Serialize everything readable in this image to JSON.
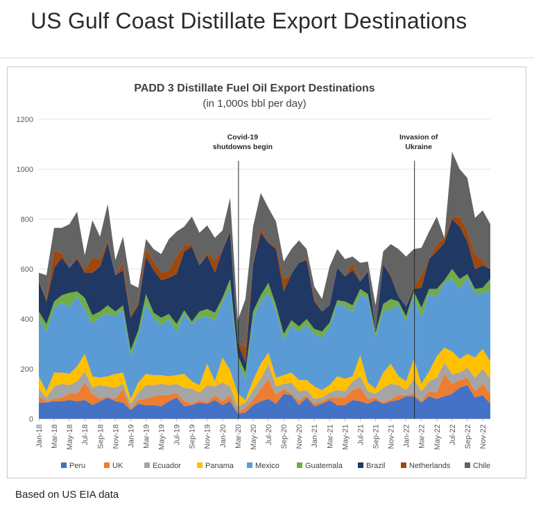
{
  "page": {
    "title": "US Gulf Coast Distillate Export Destinations",
    "footnote": "Based on US EIA data"
  },
  "chart_data": {
    "type": "area",
    "stacked": true,
    "title": "PADD 3 Distillate Fuel Oil Export Destinations",
    "subtitle": "(in 1,000s bbl per day)",
    "xlabel": "",
    "ylabel": "",
    "ylim": [
      0,
      1200
    ],
    "yticks": [
      "0",
      "200",
      "400",
      "600",
      "800",
      "1000",
      "1200"
    ],
    "x": [
      "Jan-18",
      "Feb-18",
      "Mar-18",
      "Apr-18",
      "May-18",
      "Jun-18",
      "Jul-18",
      "Aug-18",
      "Sep-18",
      "Oct-18",
      "Nov-18",
      "Dec-18",
      "Jan-19",
      "Feb-19",
      "Mar-19",
      "Apr-19",
      "May-19",
      "Jun-19",
      "Jul-19",
      "Aug-19",
      "Sep-19",
      "Oct-19",
      "Nov-19",
      "Dec-19",
      "Jan-20",
      "Feb-20",
      "Mar-20",
      "Apr-20",
      "May-20",
      "Jun-20",
      "Jul-20",
      "Aug-20",
      "Sep-20",
      "Oct-20",
      "Nov-20",
      "Dec-20",
      "Jan-21",
      "Feb-21",
      "Mar-21",
      "Apr-21",
      "May-21",
      "Jun-21",
      "Jul-21",
      "Aug-21",
      "Sep-21",
      "Oct-21",
      "Nov-21",
      "Dec-21",
      "Jan-22",
      "Feb-22",
      "Mar-22",
      "Apr-22",
      "May-22",
      "Jun-22",
      "Jul-22",
      "Aug-22",
      "Sep-22",
      "Oct-22",
      "Nov-22",
      "Dec-22"
    ],
    "xtick_labels": [
      "Jan-18",
      "Mar-18",
      "May-18",
      "Jul-18",
      "Sep-18",
      "Nov-18",
      "Jan-19",
      "Mar-19",
      "May-19",
      "Jul-19",
      "Sep-19",
      "Nov-19",
      "Jan-20",
      "Mar-20",
      "May-20",
      "Jul-20",
      "Sep-20",
      "Nov-20",
      "Jan-21",
      "Mar-21",
      "May-21",
      "Jul-21",
      "Sep-21",
      "Nov-21",
      "Jan-22",
      "Mar-22",
      "May-22",
      "Jul-22",
      "Sep-22",
      "Nov-22"
    ],
    "series": [
      {
        "name": "Peru",
        "color": "#4472C4",
        "values": [
          65,
          65,
          70,
          70,
          75,
          70,
          75,
          55,
          70,
          85,
          70,
          65,
          35,
          60,
          55,
          55,
          50,
          70,
          85,
          50,
          55,
          65,
          60,
          75,
          55,
          70,
          20,
          25,
          55,
          70,
          80,
          60,
          100,
          95,
          55,
          85,
          50,
          60,
          75,
          55,
          55,
          75,
          70,
          60,
          75,
          60,
          70,
          75,
          90,
          90,
          65,
          90,
          80,
          90,
          100,
          125,
          135,
          85,
          95,
          60
        ]
      },
      {
        "name": "UK",
        "color": "#ED7D31",
        "values": [
          25,
          5,
          10,
          15,
          25,
          30,
          70,
          45,
          10,
          5,
          10,
          55,
          5,
          15,
          25,
          35,
          45,
          25,
          20,
          20,
          5,
          10,
          5,
          20,
          15,
          25,
          5,
          20,
          20,
          50,
          80,
          35,
          20,
          5,
          15,
          10,
          10,
          10,
          10,
          30,
          30,
          40,
          55,
          20,
          10,
          5,
          10,
          20,
          5,
          10,
          5,
          20,
          25,
          90,
          40,
          30,
          30,
          25,
          45,
          40
        ]
      },
      {
        "name": "Ecuador",
        "color": "#A5A5A5",
        "values": [
          30,
          15,
          50,
          55,
          35,
          50,
          45,
          25,
          55,
          40,
          45,
          20,
          20,
          30,
          55,
          45,
          45,
          40,
          35,
          55,
          60,
          30,
          70,
          35,
          75,
          35,
          25,
          20,
          40,
          40,
          60,
          35,
          20,
          45,
          40,
          20,
          20,
          15,
          20,
          30,
          25,
          35,
          45,
          30,
          15,
          60,
          60,
          40,
          20,
          60,
          40,
          40,
          60,
          45,
          40,
          30,
          40,
          55,
          60,
          60
        ]
      },
      {
        "name": "Panama",
        "color": "#FFC000",
        "values": [
          50,
          25,
          55,
          45,
          45,
          60,
          70,
          45,
          30,
          40,
          55,
          45,
          20,
          40,
          45,
          40,
          35,
          35,
          35,
          55,
          30,
          30,
          85,
          20,
          100,
          65,
          50,
          10,
          40,
          60,
          45,
          35,
          35,
          40,
          45,
          40,
          50,
          30,
          30,
          55,
          50,
          20,
          85,
          35,
          20,
          60,
          80,
          35,
          35,
          80,
          30,
          40,
          85,
          60,
          90,
          55,
          55,
          80,
          80,
          70
        ]
      },
      {
        "name": "Mexico",
        "color": "#5B9BD5",
        "values": [
          230,
          240,
          260,
          280,
          270,
          280,
          180,
          210,
          245,
          250,
          230,
          250,
          175,
          190,
          280,
          230,
          200,
          230,
          175,
          240,
          230,
          270,
          190,
          245,
          220,
          335,
          130,
          80,
          250,
          250,
          240,
          270,
          140,
          190,
          195,
          220,
          210,
          210,
          230,
          290,
          290,
          260,
          240,
          340,
          205,
          245,
          220,
          285,
          240,
          250,
          265,
          310,
          240,
          260,
          290,
          280,
          305,
          255,
          220,
          285
        ]
      },
      {
        "name": "Guatemala",
        "color": "#70AD47",
        "values": [
          30,
          30,
          25,
          30,
          55,
          20,
          45,
          35,
          20,
          35,
          20,
          20,
          20,
          20,
          40,
          20,
          30,
          20,
          30,
          15,
          10,
          25,
          30,
          30,
          20,
          30,
          25,
          30,
          25,
          25,
          40,
          20,
          25,
          20,
          20,
          25,
          20,
          25,
          20,
          15,
          20,
          25,
          25,
          15,
          20,
          30,
          40,
          15,
          20,
          20,
          40,
          20,
          30,
          10,
          40,
          40,
          15,
          20,
          25,
          45
        ]
      },
      {
        "name": "Brazil",
        "color": "#203864",
        "values": [
          120,
          90,
          135,
          150,
          100,
          130,
          100,
          170,
          180,
          250,
          145,
          140,
          130,
          100,
          150,
          170,
          150,
          145,
          200,
          235,
          300,
          185,
          215,
          160,
          190,
          190,
          50,
          40,
          190,
          250,
          160,
          225,
          170,
          185,
          255,
          235,
          110,
          80,
          70,
          130,
          100,
          140,
          30,
          90,
          10,
          160,
          90,
          20,
          40,
          10,
          80,
          120,
          150,
          150,
          200,
          210,
          130,
          80,
          90,
          40
        ]
      },
      {
        "name": "Netherlands",
        "color": "#9E480E",
        "values": [
          0,
          10,
          70,
          20,
          0,
          10,
          10,
          60,
          30,
          10,
          0,
          30,
          10,
          10,
          35,
          35,
          30,
          30,
          70,
          25,
          10,
          0,
          10,
          50,
          0,
          10,
          0,
          60,
          5,
          20,
          0,
          10,
          50,
          0,
          0,
          10,
          10,
          0,
          0,
          0,
          0,
          30,
          0,
          5,
          0,
          0,
          10,
          0,
          0,
          10,
          50,
          0,
          30,
          20,
          10,
          40,
          40,
          60,
          20,
          0
        ]
      },
      {
        "name": "Chile",
        "color": "#636363",
        "values": [
          35,
          95,
          90,
          100,
          175,
          180,
          60,
          150,
          90,
          145,
          60,
          105,
          125,
          60,
          35,
          50,
          75,
          125,
          100,
          75,
          110,
          130,
          110,
          90,
          80,
          125,
          90,
          195,
          145,
          140,
          140,
          100,
          70,
          100,
          90,
          35,
          50,
          50,
          155,
          75,
          70,
          25,
          75,
          35,
          100,
          50,
          120,
          190,
          200,
          150,
          110,
          110,
          110,
          0,
          260,
          190,
          215,
          145,
          200,
          180
        ]
      }
    ],
    "annotations": [
      {
        "text_lines": [
          "Covid-19",
          "shutdowns begin"
        ],
        "at": "Mar-20"
      },
      {
        "text_lines": [
          "Invasion of",
          "Ukraine"
        ],
        "at": "Feb-22"
      }
    ],
    "grid": true,
    "legend": "bottom"
  }
}
